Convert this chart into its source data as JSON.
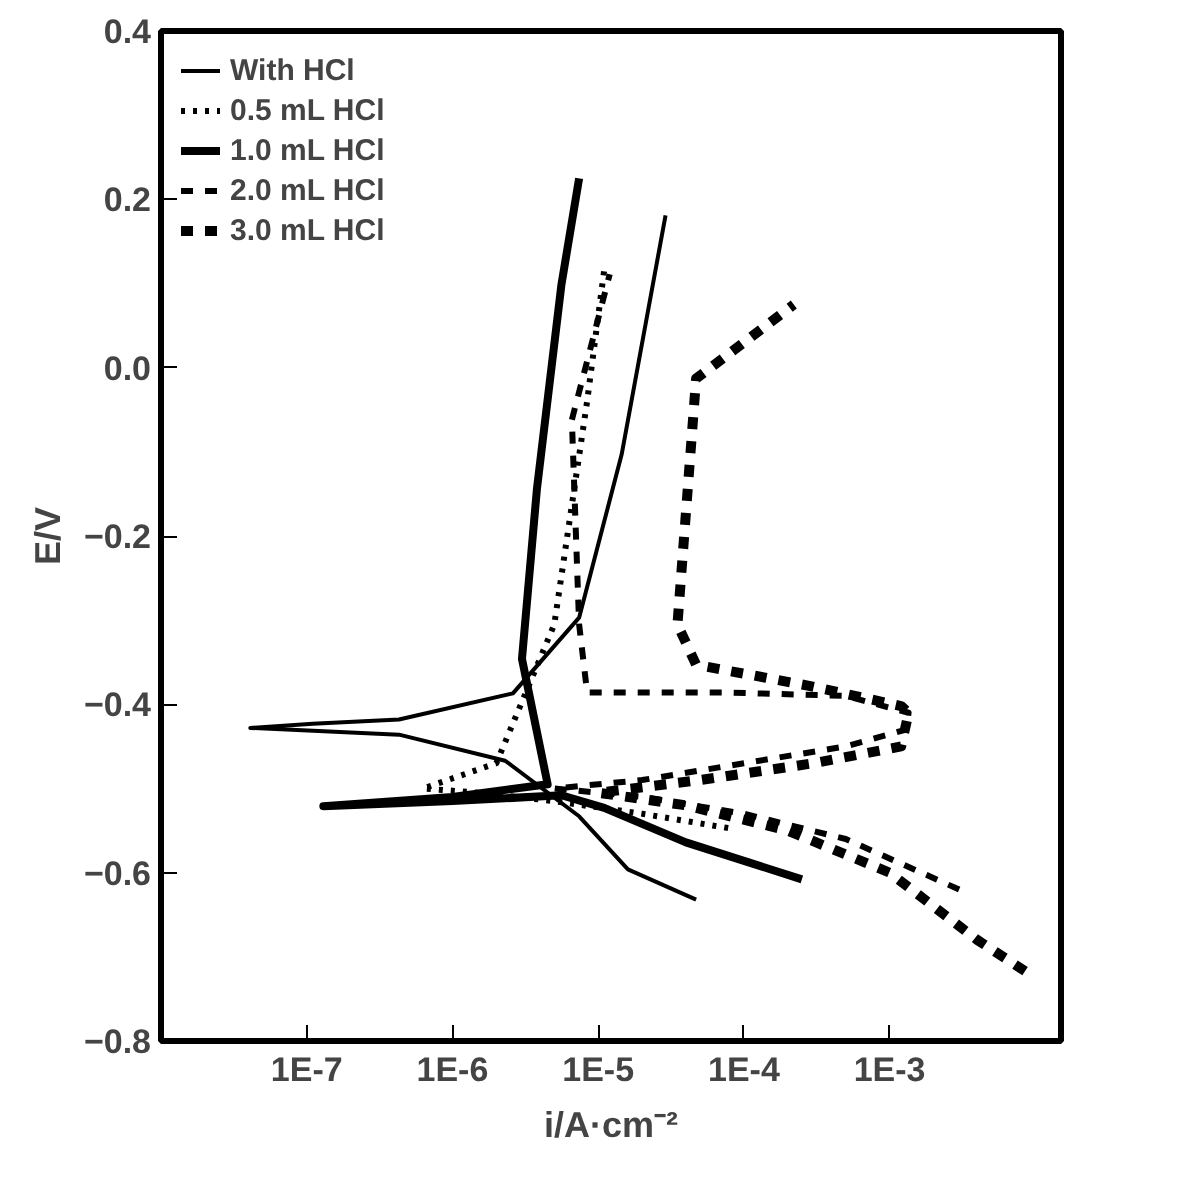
{
  "chart_data": {
    "type": "line",
    "xlabel": "i/A·cm⁻²",
    "ylabel": "E/V",
    "log": "x",
    "grid": false,
    "legend": "top left",
    "xlim": [
      1e-08,
      0.015
    ],
    "ylim": [
      -0.8,
      0.4
    ],
    "xticks": [
      {
        "value": 1e-07,
        "label": "1E-7"
      },
      {
        "value": 1e-06,
        "label": "1E-6"
      },
      {
        "value": 1e-05,
        "label": "1E-5"
      },
      {
        "value": 0.0001,
        "label": "1E-4"
      },
      {
        "value": 0.001,
        "label": "1E-3"
      }
    ],
    "yticks": [
      -0.8,
      -0.6,
      -0.4,
      -0.2,
      {
        "value": 0,
        "label": "0.0"
      },
      0.2,
      0.4
    ],
    "series": [
      {
        "name": "With HCl",
        "color": "#000000",
        "line_style": "solid",
        "x": [
          4.7e-05,
          1.6e-05,
          7.4e-06,
          2.3e-06,
          4.3e-07,
          4.1e-08,
          1.1e-07,
          4.3e-07,
          2.6e-06,
          7.4e-06,
          1.45e-05,
          2.9e-05
        ],
        "values": [
          -0.632,
          -0.596,
          -0.533,
          -0.467,
          -0.436,
          -0.428,
          -0.423,
          -0.418,
          -0.387,
          -0.297,
          -0.103,
          0.181
        ]
      },
      {
        "name": "0.5 mL HCl",
        "color": "#000000",
        "line_style": "dotted",
        "x": [
          7.8e-05,
          2e-05,
          5e-06,
          1.5e-06,
          6.3e-07,
          2e-06,
          5e-06,
          8.4e-06,
          1.1e-05
        ],
        "values": [
          -0.547,
          -0.53,
          -0.515,
          -0.505,
          -0.5,
          -0.47,
          -0.305,
          -0.04,
          0.116
        ]
      },
      {
        "name": "1.0 mL HCl",
        "color": "#000000",
        "line_style": "solid",
        "x": [
          0.00025,
          4e-05,
          1.1e-05,
          5.6e-06,
          1e-06,
          1.3e-07,
          1e-06,
          4.5e-06,
          3e-06,
          3.8e-06,
          5.6e-06,
          7.4e-06
        ],
        "values": [
          -0.608,
          -0.564,
          -0.523,
          -0.508,
          -0.515,
          -0.521,
          -0.51,
          -0.495,
          -0.346,
          -0.144,
          0.099,
          0.225
        ]
      },
      {
        "name": "2.0 mL HCl",
        "color": "#000000",
        "line_style": "dashed",
        "x": [
          0.003,
          0.0005,
          0.0001,
          2e-05,
          5e-06,
          2e-05,
          0.0001,
          0.0005,
          0.0013,
          0.00135,
          0.0005,
          7.8e-05,
          8.4e-06,
          7.4e-06,
          6.6e-06,
          1.2e-05
        ],
        "values": [
          -0.62,
          -0.56,
          -0.53,
          -0.51,
          -0.5,
          -0.49,
          -0.47,
          -0.45,
          -0.43,
          -0.41,
          -0.39,
          -0.386,
          -0.386,
          -0.305,
          -0.062,
          0.111
        ]
      },
      {
        "name": "3.0 mL HCl",
        "color": "#000000",
        "line_style": "dashed",
        "x": [
          0.0085,
          0.004,
          0.001,
          0.0002,
          4e-05,
          1e-05,
          5e-05,
          0.0003,
          0.0012,
          0.00135,
          0.0012,
          0.00028,
          4.7e-05,
          3.5e-05,
          4.7e-05,
          0.00022
        ],
        "values": [
          -0.717,
          -0.68,
          -0.6,
          -0.55,
          -0.52,
          -0.505,
          -0.49,
          -0.47,
          -0.45,
          -0.41,
          -0.402,
          -0.378,
          -0.353,
          -0.305,
          -0.013,
          0.075
        ]
      }
    ]
  }
}
